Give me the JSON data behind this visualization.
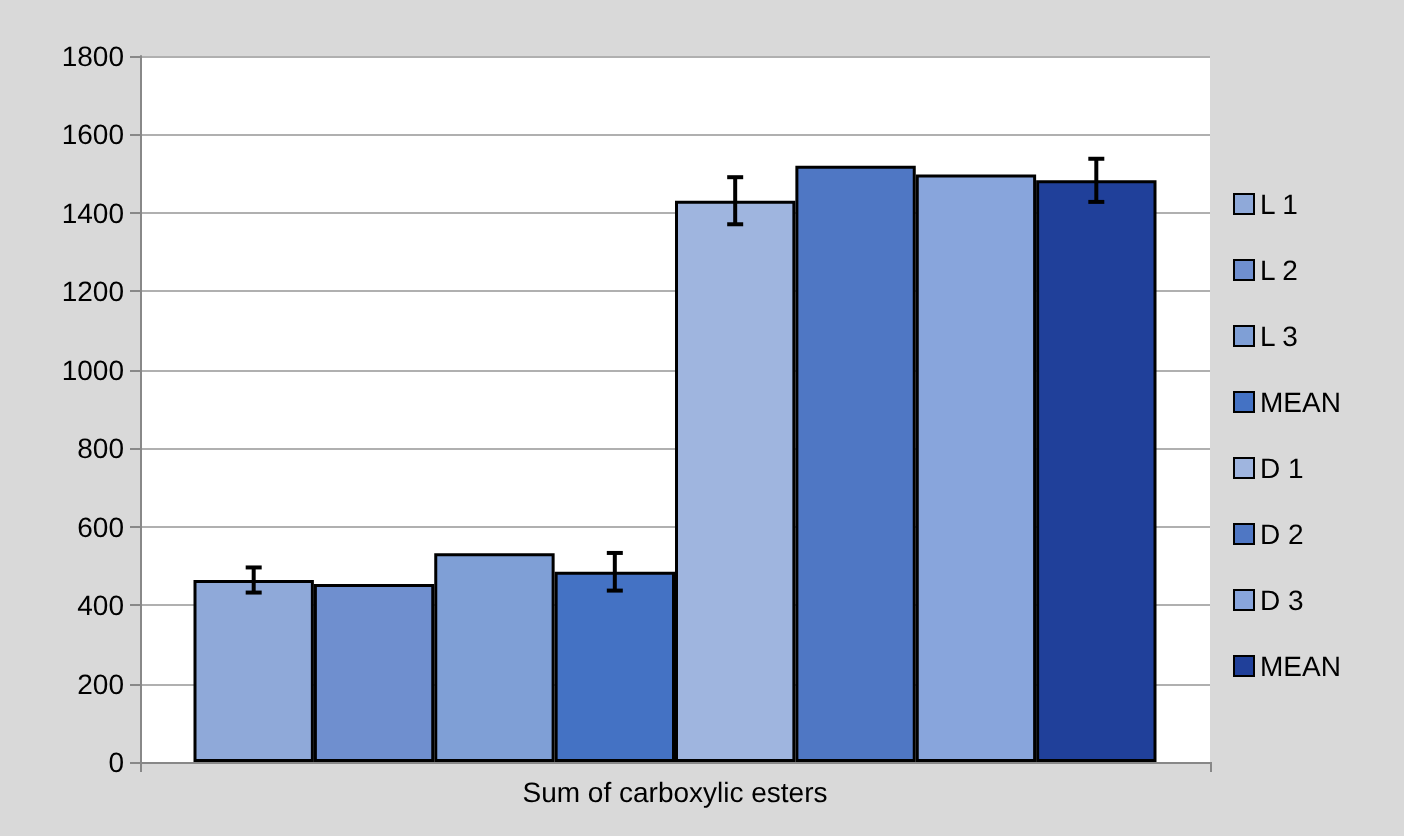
{
  "chart_data": {
    "type": "bar",
    "categories": [
      "Sum of carboxylic esters"
    ],
    "series": [
      {
        "name": "L 1",
        "color": "#8fa9d9",
        "values": [
          464
        ],
        "errors": [
          32
        ]
      },
      {
        "name": "L 2",
        "color": "#6f8fcf",
        "values": [
          454
        ],
        "errors": [
          null
        ]
      },
      {
        "name": "L 3",
        "color": "#7f9fd6",
        "values": [
          532
        ],
        "errors": [
          null
        ]
      },
      {
        "name": "MEAN",
        "color": "#4472c4",
        "values": [
          485
        ],
        "errors": [
          48
        ]
      },
      {
        "name": "D 1",
        "color": "#9fb5df",
        "values": [
          1431
        ],
        "errors": [
          60
        ]
      },
      {
        "name": "D 2",
        "color": "#4f77c4",
        "values": [
          1520
        ],
        "errors": [
          null
        ]
      },
      {
        "name": "D 3",
        "color": "#88a5dc",
        "values": [
          1498
        ],
        "errors": [
          null
        ]
      },
      {
        "name": "MEAN",
        "color": "#20409a",
        "values": [
          1483
        ],
        "errors": [
          55
        ]
      }
    ],
    "ylim": [
      0,
      1800
    ],
    "yticks": [
      0,
      200,
      400,
      600,
      800,
      1000,
      1200,
      1400,
      1600,
      1800
    ],
    "grid": "y",
    "legend": "right"
  }
}
